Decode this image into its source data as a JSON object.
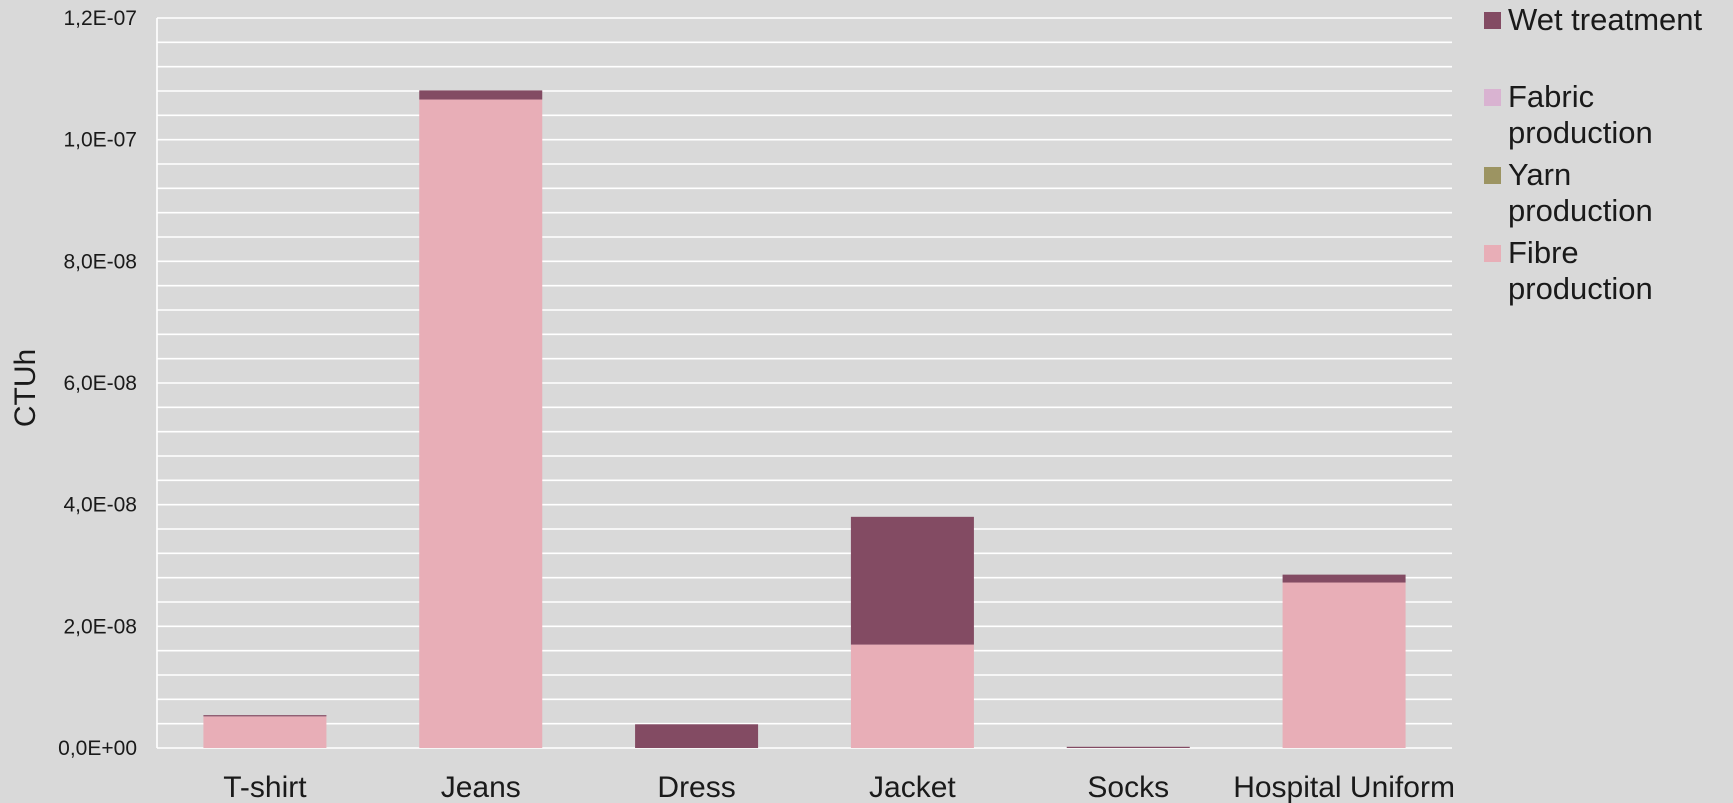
{
  "chart_data": {
    "type": "bar",
    "stacked": true,
    "title": "",
    "xlabel": "",
    "ylabel": "CTUh",
    "ylim": [
      0,
      1.2e-07
    ],
    "y_major_ticks": [
      0,
      2e-08,
      4e-08,
      6e-08,
      8e-08,
      1e-07,
      1.2e-07
    ],
    "y_tick_labels": [
      "0,0E+00",
      "2,0E-08",
      "4,0E-08",
      "6,0E-08",
      "8,0E-08",
      "1,0E-07",
      "1,2E-07"
    ],
    "grid": true,
    "legend_position": "right",
    "categories": [
      "T-shirt",
      "Jeans",
      "Dress",
      "Jacket",
      "Socks",
      "Hospital Uniform"
    ],
    "series": [
      {
        "name": "Fibre production",
        "color": "#e8aeb7",
        "values": [
          5.2e-09,
          1.066e-07,
          0,
          1.7e-08,
          0,
          2.72e-08
        ]
      },
      {
        "name": "Yarn production",
        "color": "#9c9462",
        "values": [
          0,
          0,
          0,
          0,
          0,
          0
        ]
      },
      {
        "name": "Fabric production",
        "color": "#d9b3d1",
        "values": [
          0,
          0,
          0,
          0,
          0,
          0
        ]
      },
      {
        "name": "Wet treatment",
        "color": "#834b63",
        "values": [
          2e-10,
          1.5e-09,
          3.9e-09,
          2.1e-08,
          2e-10,
          1.3e-09
        ]
      }
    ],
    "legend_order": [
      "Wet treatment",
      "Fabric production",
      "Yarn production",
      "Fibre production"
    ]
  },
  "legend_labels": {
    "wet": "Wet treatment",
    "fabric": "Fabric production",
    "yarn": "Yarn production",
    "fibre": "Fibre production"
  }
}
